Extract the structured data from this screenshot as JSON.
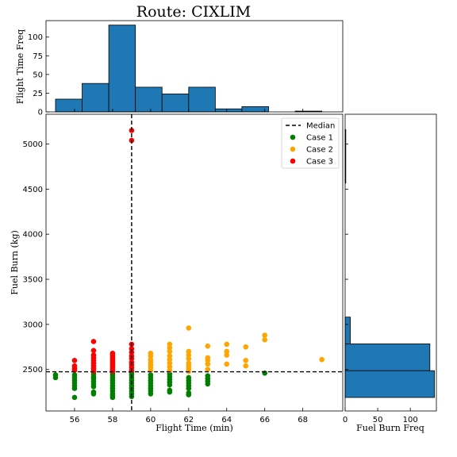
{
  "chart_data": [
    {
      "id": "scatter",
      "type": "scatter",
      "title": "Route: CIXLIM",
      "xlabel": "Flight Time (min)",
      "ylabel": "Fuel Burn (kg)",
      "xlim": [
        54.5,
        70.1
      ],
      "ylim": [
        2040,
        5330
      ],
      "xticks": [
        56,
        58,
        60,
        62,
        64,
        66,
        68
      ],
      "yticks": [
        2500,
        3000,
        3500,
        4000,
        4500,
        5000
      ],
      "median": {
        "label": "Median",
        "x": 59,
        "y": 2475
      },
      "legend_position": "top-right",
      "series": [
        {
          "name": "Case 1",
          "color": "#008000",
          "points": [
            [
              55,
              2410
            ],
            [
              55,
              2440
            ],
            [
              56,
              2190
            ],
            [
              56,
              2290
            ],
            [
              56,
              2320
            ],
            [
              56,
              2350
            ],
            [
              56,
              2380
            ],
            [
              56,
              2410
            ],
            [
              56,
              2440
            ],
            [
              57,
              2230
            ],
            [
              57,
              2250
            ],
            [
              57,
              2310
            ],
            [
              57,
              2340
            ],
            [
              57,
              2370
            ],
            [
              57,
              2400
            ],
            [
              57,
              2420
            ],
            [
              57,
              2450
            ],
            [
              58,
              2190
            ],
            [
              58,
              2210
            ],
            [
              58,
              2230
            ],
            [
              58,
              2260
            ],
            [
              58,
              2290
            ],
            [
              58,
              2320
            ],
            [
              58,
              2350
            ],
            [
              58,
              2380
            ],
            [
              58,
              2410
            ],
            [
              58,
              2440
            ],
            [
              58,
              2460
            ],
            [
              59,
              2200
            ],
            [
              59,
              2230
            ],
            [
              59,
              2260
            ],
            [
              59,
              2290
            ],
            [
              59,
              2320
            ],
            [
              59,
              2350
            ],
            [
              59,
              2380
            ],
            [
              59,
              2410
            ],
            [
              59,
              2440
            ],
            [
              59,
              2465
            ],
            [
              60,
              2230
            ],
            [
              60,
              2260
            ],
            [
              60,
              2290
            ],
            [
              60,
              2320
            ],
            [
              60,
              2350
            ],
            [
              60,
              2380
            ],
            [
              60,
              2410
            ],
            [
              60,
              2440
            ],
            [
              61,
              2250
            ],
            [
              61,
              2270
            ],
            [
              61,
              2330
            ],
            [
              61,
              2360
            ],
            [
              61,
              2390
            ],
            [
              61,
              2420
            ],
            [
              61,
              2450
            ],
            [
              62,
              2220
            ],
            [
              62,
              2240
            ],
            [
              62,
              2290
            ],
            [
              62,
              2320
            ],
            [
              62,
              2350
            ],
            [
              62,
              2380
            ],
            [
              62,
              2410
            ],
            [
              63,
              2340
            ],
            [
              63,
              2370
            ],
            [
              63,
              2400
            ],
            [
              63,
              2430
            ],
            [
              66,
              2460
            ]
          ]
        },
        {
          "name": "Case 2",
          "color": "#ffa500",
          "points": [
            [
              60,
              2490
            ],
            [
              60,
              2520
            ],
            [
              60,
              2550
            ],
            [
              60,
              2580
            ],
            [
              60,
              2610
            ],
            [
              60,
              2650
            ],
            [
              60,
              2680
            ],
            [
              61,
              2490
            ],
            [
              61,
              2530
            ],
            [
              61,
              2570
            ],
            [
              61,
              2610
            ],
            [
              61,
              2650
            ],
            [
              61,
              2700
            ],
            [
              61,
              2740
            ],
            [
              61,
              2780
            ],
            [
              62,
              2480
            ],
            [
              62,
              2510
            ],
            [
              62,
              2540
            ],
            [
              62,
              2570
            ],
            [
              62,
              2620
            ],
            [
              62,
              2660
            ],
            [
              62,
              2700
            ],
            [
              62,
              2960
            ],
            [
              63,
              2500
            ],
            [
              63,
              2560
            ],
            [
              63,
              2600
            ],
            [
              63,
              2630
            ],
            [
              63,
              2760
            ],
            [
              64,
              2560
            ],
            [
              64,
              2660
            ],
            [
              64,
              2700
            ],
            [
              64,
              2780
            ],
            [
              65,
              2540
            ],
            [
              65,
              2600
            ],
            [
              65,
              2750
            ],
            [
              66,
              2830
            ],
            [
              66,
              2880
            ],
            [
              69,
              2610
            ]
          ]
        },
        {
          "name": "Case 3",
          "color": "#ff0000",
          "points": [
            [
              56,
              2490
            ],
            [
              56,
              2510
            ],
            [
              56,
              2540
            ],
            [
              56,
              2600
            ],
            [
              57,
              2480
            ],
            [
              57,
              2510
            ],
            [
              57,
              2540
            ],
            [
              57,
              2570
            ],
            [
              57,
              2600
            ],
            [
              57,
              2630
            ],
            [
              57,
              2660
            ],
            [
              57,
              2710
            ],
            [
              57,
              2810
            ],
            [
              58,
              2480
            ],
            [
              58,
              2500
            ],
            [
              58,
              2520
            ],
            [
              58,
              2540
            ],
            [
              58,
              2560
            ],
            [
              58,
              2580
            ],
            [
              58,
              2600
            ],
            [
              58,
              2620
            ],
            [
              58,
              2640
            ],
            [
              58,
              2660
            ],
            [
              58,
              2680
            ],
            [
              59,
              2490
            ],
            [
              59,
              2520
            ],
            [
              59,
              2550
            ],
            [
              59,
              2580
            ],
            [
              59,
              2620
            ],
            [
              59,
              2650
            ],
            [
              59,
              2690
            ],
            [
              59,
              2730
            ],
            [
              59,
              2780
            ],
            [
              59,
              5040
            ],
            [
              59,
              5150
            ]
          ]
        }
      ]
    },
    {
      "id": "top-hist",
      "type": "bar",
      "ylabel": "Flight Time Freq",
      "xlim": [
        54.5,
        70.1
      ],
      "ylim": [
        0,
        122
      ],
      "yticks": [
        0,
        25,
        50,
        75,
        100
      ],
      "color": "#1f77b4",
      "bins": [
        {
          "x0": 55.0,
          "x1": 56.4,
          "count": 17
        },
        {
          "x0": 56.4,
          "x1": 57.8,
          "count": 38
        },
        {
          "x0": 57.8,
          "x1": 59.2,
          "count": 116
        },
        {
          "x0": 59.2,
          "x1": 60.6,
          "count": 33
        },
        {
          "x0": 60.6,
          "x1": 62.0,
          "count": 24
        },
        {
          "x0": 62.0,
          "x1": 63.4,
          "count": 33
        },
        {
          "x0": 63.4,
          "x1": 64.8,
          "count": 4
        },
        {
          "x0": 64.8,
          "x1": 66.2,
          "count": 7
        },
        {
          "x0": 66.2,
          "x1": 67.6,
          "count": 0
        },
        {
          "x0": 67.6,
          "x1": 69.0,
          "count": 1
        }
      ]
    },
    {
      "id": "right-hist",
      "type": "bar",
      "orientation": "horizontal",
      "xlabel": "Fuel Burn Freq",
      "xlim": [
        0,
        140
      ],
      "xticks": [
        0,
        50,
        100
      ],
      "color": "#1f77b4",
      "bins": [
        {
          "y0": 2190,
          "y1": 2487,
          "count": 137
        },
        {
          "y0": 2487,
          "y1": 2784,
          "count": 130
        },
        {
          "y0": 2784,
          "y1": 3081,
          "count": 8
        },
        {
          "y0": 3081,
          "y1": 3378,
          "count": 0
        },
        {
          "y0": 3378,
          "y1": 3675,
          "count": 0
        },
        {
          "y0": 3675,
          "y1": 3972,
          "count": 0
        },
        {
          "y0": 3972,
          "y1": 4269,
          "count": 0
        },
        {
          "y0": 4269,
          "y1": 4566,
          "count": 0
        },
        {
          "y0": 4566,
          "y1": 4863,
          "count": 1
        },
        {
          "y0": 4863,
          "y1": 5160,
          "count": 1
        }
      ]
    }
  ]
}
